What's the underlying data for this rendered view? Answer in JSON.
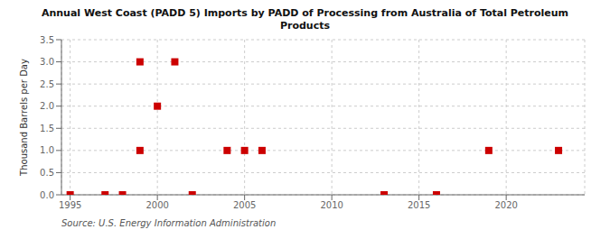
{
  "chart_data": {
    "type": "scatter",
    "title": "Annual West Coast (PADD 5) Imports by PADD of Processing from Australia of Total Petroleum\nProducts",
    "y_label": "Thousand Barrels per Day",
    "annotation": "Source: U.S. Energy Information Administration",
    "color": "#cc0000",
    "marker": "square",
    "grid": true,
    "xlim": [
      1994.5,
      2024.5
    ],
    "ylim": [
      0.0,
      3.5
    ],
    "xticks": [
      1995,
      2000,
      2005,
      2010,
      2015,
      2020
    ],
    "yticks": [
      {
        "value": 0.0,
        "label": "0.0"
      },
      {
        "value": 0.5,
        "label": "0.5"
      },
      {
        "value": 1.0,
        "label": "1.0"
      },
      {
        "value": 1.5,
        "label": "1.5"
      },
      {
        "value": 2.0,
        "label": "2.0"
      },
      {
        "value": 2.5,
        "label": "2.5"
      },
      {
        "value": 3.0,
        "label": "3.0"
      },
      {
        "value": 3.5,
        "label": "3.5"
      }
    ],
    "x": [
      1995,
      1997,
      1998,
      1999,
      1999,
      2000,
      2001,
      2002,
      2004,
      2005,
      2006,
      2013,
      2016,
      2019,
      2023
    ],
    "y": [
      0.0,
      0.0,
      0.0,
      1.0,
      3.0,
      2.0,
      3.0,
      0.0,
      1.0,
      1.0,
      1.0,
      0.0,
      0.0,
      1.0,
      1.0
    ]
  }
}
